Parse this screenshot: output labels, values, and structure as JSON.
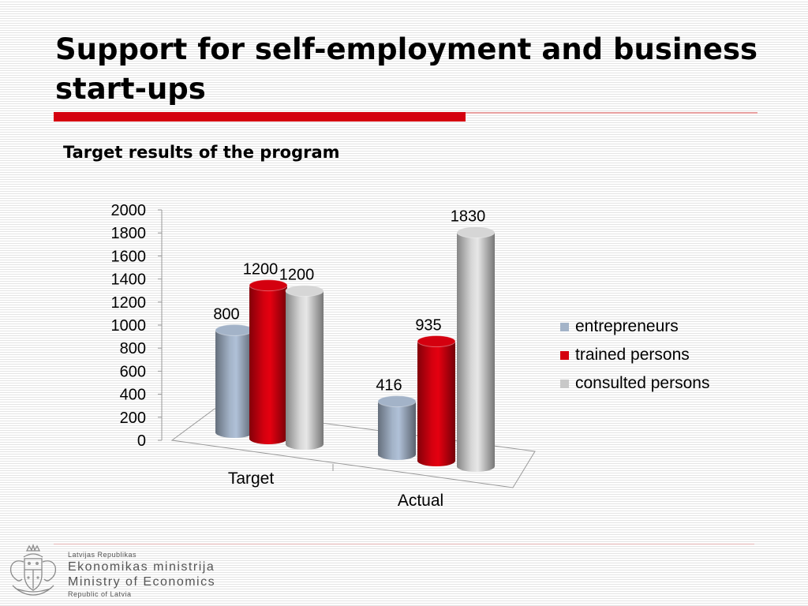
{
  "slide": {
    "title": "Support for self-employment and business start-ups",
    "subtitle": "Target results of the program"
  },
  "chart_data": {
    "type": "bar",
    "style": "3d-cylinder",
    "title": "Target results of the program",
    "categories": [
      "Target",
      "Actual"
    ],
    "series": [
      {
        "name": "entrepreneurs",
        "values": [
          800,
          416
        ],
        "color": "#a3b3c8"
      },
      {
        "name": "trained persons",
        "values": [
          1200,
          935
        ],
        "color": "#d4000f"
      },
      {
        "name": "consulted persons",
        "values": [
          1200,
          1830
        ],
        "color": "#d6d6d6"
      }
    ],
    "data_labels": [
      [
        "800",
        "416"
      ],
      [
        "1200",
        "935"
      ],
      [
        "1200",
        "1830"
      ]
    ],
    "yticks": [
      "0",
      "200",
      "400",
      "600",
      "800",
      "1000",
      "1200",
      "1400",
      "1600",
      "1800",
      "2000"
    ],
    "ylim": [
      0,
      2000
    ],
    "xlabel": "",
    "ylabel": "",
    "grid": false,
    "legend": "right"
  },
  "legend": [
    {
      "label": "entrepreneurs",
      "color": "#a3b3c8"
    },
    {
      "label": "trained persons",
      "color": "#d4000f"
    },
    {
      "label": "consulted persons",
      "color": "#c8c8c8"
    }
  ],
  "footer": {
    "line1": "Latvijas Republikas",
    "line2": "Ekonomikas ministrija",
    "line3": "Ministry of Economics",
    "line4": "Republic of Latvia",
    "logo_icon": "latvia-coat-of-arms-icon"
  }
}
